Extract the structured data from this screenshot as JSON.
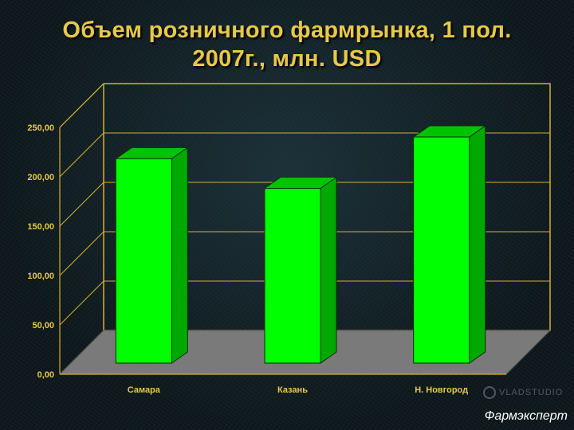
{
  "title_lines": [
    "Объем розничного фармрынка, 1 пол.",
    "2007г., млн. USD"
  ],
  "watermark": "VLADSTUDIO",
  "footer": "Фармэксперт",
  "colors": {
    "title": "#e8c84a",
    "axis_text": "#e8c84a",
    "bar_front": "#00ff00",
    "bar_side": "#00a800",
    "bar_top": "#00c400",
    "floor": "#7a7a7a",
    "frame": "#d4b030"
  },
  "chart_data": {
    "type": "bar",
    "categories": [
      "Самара",
      "Казань",
      "Н. Новгород"
    ],
    "values": [
      207,
      177,
      229
    ],
    "yticks": [
      "0,00",
      "50,00",
      "100,00",
      "150,00",
      "200,00",
      "250,00"
    ],
    "ylim": [
      0,
      250
    ],
    "grid": true,
    "legend": "none",
    "style": "3d"
  }
}
